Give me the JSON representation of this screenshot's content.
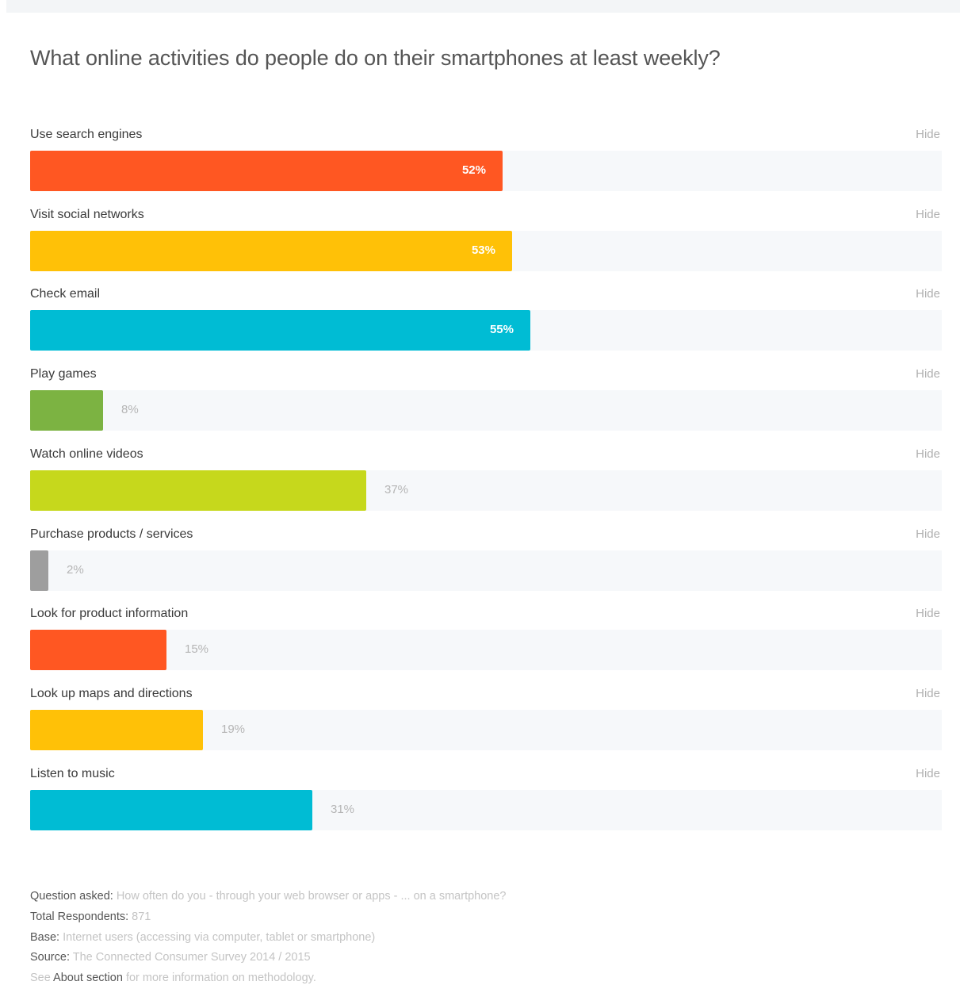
{
  "title": "What online activities do people do on their smartphones at least weekly?",
  "hide_label": "Hide",
  "chart_data": {
    "type": "bar",
    "orientation": "horizontal",
    "title": "What online activities do people do on their smartphones at least weekly?",
    "value_suffix": "%",
    "xlim": [
      0,
      100
    ],
    "grid": false,
    "categories": [
      "Use search engines",
      "Visit social networks",
      "Check email",
      "Play games",
      "Watch online videos",
      "Purchase products / services",
      "Look for product information",
      "Look up maps and directions",
      "Listen to music"
    ],
    "values": [
      52,
      53,
      55,
      8,
      37,
      2,
      15,
      19,
      31
    ],
    "colors": [
      "#ff5722",
      "#ffc107",
      "#00bcd4",
      "#7cb342",
      "#c6d81c",
      "#9e9e9e",
      "#ff5722",
      "#ffc107",
      "#00bcd4"
    ]
  },
  "footer": {
    "question_key": "Question asked:",
    "question_value": "How often do you - through your web browser or apps - ... on a smartphone?",
    "respondents_key": "Total Respondents:",
    "respondents_value": "871",
    "base_key": "Base:",
    "base_value": "Internet users (accessing via computer, tablet or smartphone)",
    "source_key": "Source:",
    "source_value": "The Connected Consumer Survey 2014 / 2015",
    "see_text": "See",
    "about_link": "About section",
    "methodology_text": "for more information on methodology."
  }
}
